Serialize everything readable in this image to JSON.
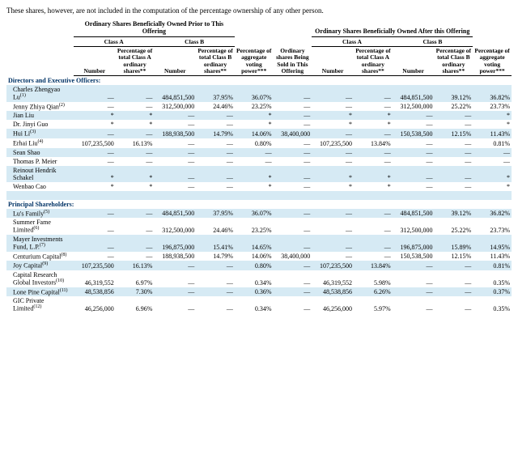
{
  "intro_fragment": "These shares, however, are not included in the computation of the percentage ownership of any other person.",
  "headers": {
    "prior_group": "Ordinary Shares Beneficially Owned Prior to This Offering",
    "after_group": "Ordinary Shares Beneficially Owned After this Offering",
    "class_a": "Class A",
    "class_b": "Class B",
    "number": "Number",
    "pct_a": "Percentage of total Class A ordinary shares**",
    "pct_b": "Percentage of total Class B ordinary shares**",
    "agg_power": "Percentage of aggregate voting power***",
    "sold": "Ordinary shares Being Sold in This Offering"
  },
  "sections": {
    "dirs": "Directors and Executive Officers:",
    "princ": "Principal Shareholders:"
  },
  "rows": [
    {
      "section": "dirs"
    },
    {
      "label": "Charles Zhengyao Lu",
      "sup": "(1)",
      "nA": "—",
      "pA": "—",
      "nB": "484,851,500",
      "pB": "37.95%",
      "agg": "36.07%",
      "sold": "—",
      "nA2": "—",
      "pA2": "—",
      "nB2": "484,851,500",
      "pB2": "39.12%",
      "agg2": "36.82%",
      "band": "even"
    },
    {
      "label": "Jenny Zhiya Qian",
      "sup": "(2)",
      "nA": "—",
      "pA": "—",
      "nB": "312,500,000",
      "pB": "24.46%",
      "agg": "23.25%",
      "sold": "—",
      "nA2": "—",
      "pA2": "—",
      "nB2": "312,500,000",
      "pB2": "25.22%",
      "agg2": "23.73%",
      "band": "odd"
    },
    {
      "label": "Jian Liu",
      "sup": "",
      "nA": "*",
      "pA": "*",
      "nB": "—",
      "pB": "—",
      "agg": "*",
      "sold": "—",
      "nA2": "*",
      "pA2": "*",
      "nB2": "—",
      "pB2": "—",
      "agg2": "*",
      "band": "even"
    },
    {
      "label": "Dr. Jinyi Guo",
      "sup": "",
      "nA": "*",
      "pA": "*",
      "nB": "—",
      "pB": "—",
      "agg": "*",
      "sold": "—",
      "nA2": "*",
      "pA2": "*",
      "nB2": "—",
      "pB2": "—",
      "agg2": "*",
      "band": "odd"
    },
    {
      "label": "Hui Li",
      "sup": "(3)",
      "nA": "—",
      "pA": "—",
      "nB": "188,938,500",
      "pB": "14.79%",
      "agg": "14.06%",
      "sold": "38,400,000",
      "nA2": "—",
      "pA2": "—",
      "nB2": "150,538,500",
      "pB2": "12.15%",
      "agg2": "11.43%",
      "band": "even"
    },
    {
      "label": "Erhai Liu",
      "sup": "(4)",
      "nA": "107,235,500",
      "pA": "16.13%",
      "nB": "—",
      "pB": "—",
      "agg": "0.80%",
      "sold": "—",
      "nA2": "107,235,500",
      "pA2": "13.84%",
      "nB2": "—",
      "pB2": "—",
      "agg2": "0.81%",
      "band": "odd"
    },
    {
      "label": "Sean Shao",
      "sup": "",
      "nA": "—",
      "pA": "—",
      "nB": "—",
      "pB": "—",
      "agg": "—",
      "sold": "—",
      "nA2": "—",
      "pA2": "—",
      "nB2": "—",
      "pB2": "—",
      "agg2": "—",
      "band": "even"
    },
    {
      "label": "Thomas P. Meier",
      "sup": "",
      "nA": "—",
      "pA": "—",
      "nB": "—",
      "pB": "—",
      "agg": "—",
      "sold": "—",
      "nA2": "—",
      "pA2": "—",
      "nB2": "—",
      "pB2": "—",
      "agg2": "—",
      "band": "odd"
    },
    {
      "label": "Reinout Hendrik Schakel",
      "sup": "",
      "nA": "*",
      "pA": "*",
      "nB": "—",
      "pB": "—",
      "agg": "*",
      "sold": "—",
      "nA2": "*",
      "pA2": "*",
      "nB2": "—",
      "pB2": "—",
      "agg2": "*",
      "band": "even"
    },
    {
      "label": "Wenbao Cao",
      "sup": "",
      "nA": "*",
      "pA": "*",
      "nB": "—",
      "pB": "—",
      "agg": "*",
      "sold": "—",
      "nA2": "*",
      "pA2": "*",
      "nB2": "—",
      "pB2": "—",
      "agg2": "*",
      "band": "odd"
    },
    {
      "spacer": true,
      "band": "even"
    },
    {
      "section": "princ"
    },
    {
      "label": "Lu's Family",
      "sup": "(5)",
      "nA": "—",
      "pA": "—",
      "nB": "484,851,500",
      "pB": "37.95%",
      "agg": "36.07%",
      "sold": "—",
      "nA2": "—",
      "pA2": "—",
      "nB2": "484,851,500",
      "pB2": "39.12%",
      "agg2": "36.82%",
      "band": "even"
    },
    {
      "label": "Summer Fame Limited",
      "sup": "(6)",
      "nA": "—",
      "pA": "—",
      "nB": "312,500,000",
      "pB": "24.46%",
      "agg": "23.25%",
      "sold": "—",
      "nA2": "—",
      "pA2": "—",
      "nB2": "312,500,000",
      "pB2": "25.22%",
      "agg2": "23.73%",
      "band": "odd"
    },
    {
      "label": "Mayer Investments Fund, L.P.",
      "sup": "(7)",
      "nA": "—",
      "pA": "—",
      "nB": "196,875,000",
      "pB": "15.41%",
      "agg": "14.65%",
      "sold": "—",
      "nA2": "—",
      "pA2": "—",
      "nB2": "196,875,000",
      "pB2": "15.89%",
      "agg2": "14.95%",
      "band": "even"
    },
    {
      "label": "Centurium Capital",
      "sup": "(8)",
      "nA": "—",
      "pA": "—",
      "nB": "188,938,500",
      "pB": "14.79%",
      "agg": "14.06%",
      "sold": "38,400,000",
      "nA2": "—",
      "pA2": "—",
      "nB2": "150,538,500",
      "pB2": "12.15%",
      "agg2": "11.43%",
      "band": "odd"
    },
    {
      "label": "Joy Capital",
      "sup": "(9)",
      "nA": "107,235,500",
      "pA": "16.13%",
      "nB": "—",
      "pB": "—",
      "agg": "0.80%",
      "sold": "—",
      "nA2": "107,235,500",
      "pA2": "13.84%",
      "nB2": "—",
      "pB2": "—",
      "agg2": "0.81%",
      "band": "even"
    },
    {
      "label": "Capital Research Global Investors",
      "sup": "(10)",
      "nA": "46,319,552",
      "pA": "6.97%",
      "nB": "—",
      "pB": "—",
      "agg": "0.34%",
      "sold": "—",
      "nA2": "46,319,552",
      "pA2": "5.98%",
      "nB2": "—",
      "pB2": "—",
      "agg2": "0.35%",
      "band": "odd"
    },
    {
      "label": "Lone Pine Capital",
      "sup": "(11)",
      "nA": "48,538,856",
      "pA": "7.30%",
      "nB": "—",
      "pB": "—",
      "agg": "0.36%",
      "sold": "—",
      "nA2": "48,538,856",
      "pA2": "6.26%",
      "nB2": "—",
      "pB2": "—",
      "agg2": "0.37%",
      "band": "even"
    },
    {
      "label": "GIC Private Limited",
      "sup": "(12)",
      "nA": "46,256,000",
      "pA": "6.96%",
      "nB": "—",
      "pB": "—",
      "agg": "0.34%",
      "sold": "—",
      "nA2": "46,256,000",
      "pA2": "5.97%",
      "nB2": "—",
      "pB2": "—",
      "agg2": "0.35%",
      "band": "odd"
    }
  ]
}
